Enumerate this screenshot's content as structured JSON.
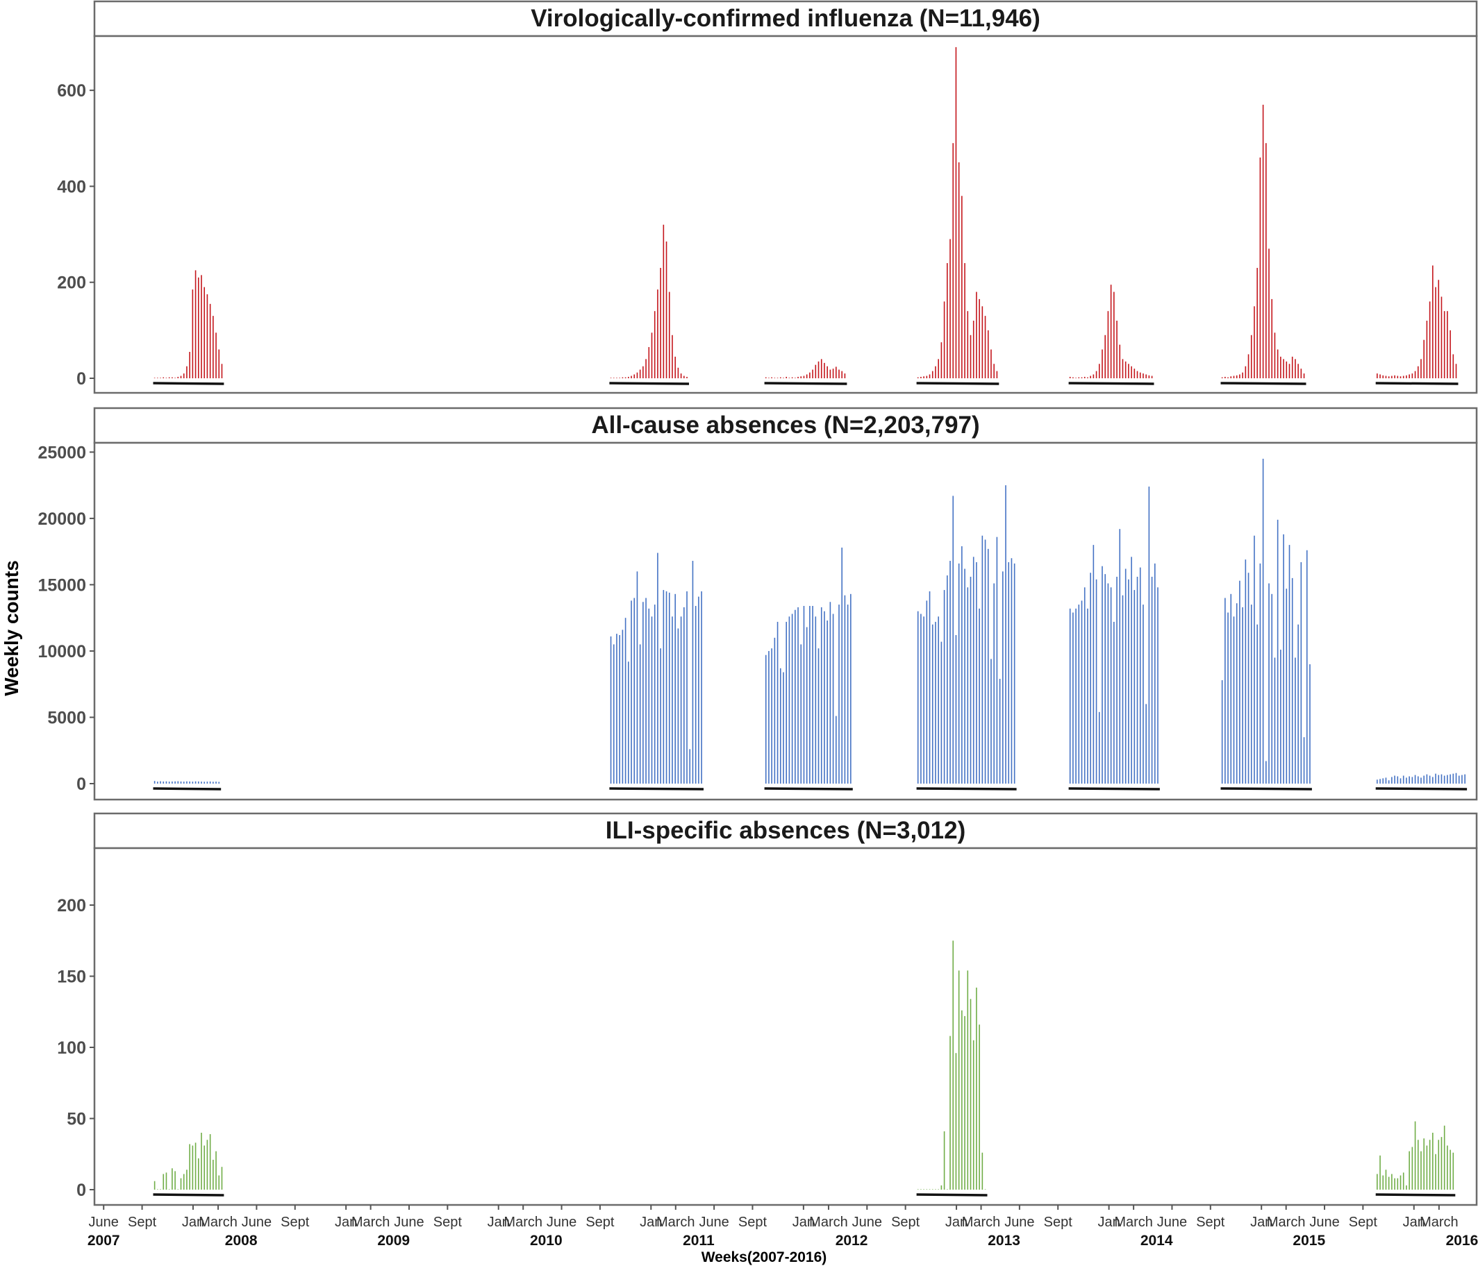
{
  "chart_data": [
    {
      "type": "bar",
      "title": "Virologically-confirmed influenza (N=11,946)",
      "xlabel": "Weeks(2007-2016)",
      "ylabel": "Weekly counts",
      "ylim": [
        0,
        700
      ],
      "yticks": [
        0,
        200,
        400,
        600
      ],
      "color": "#c4161c",
      "seasons": [
        {
          "start": "2007-10-01",
          "values": [
            1,
            1,
            1,
            2,
            1,
            2,
            2,
            1,
            3,
            5,
            10,
            25,
            55,
            185,
            225,
            210,
            215,
            190,
            175,
            155,
            130,
            95,
            60,
            30
          ]
        },
        {
          "start": "2010-09-27",
          "values": [
            1,
            1,
            1,
            1,
            2,
            2,
            3,
            5,
            8,
            12,
            18,
            25,
            40,
            65,
            95,
            140,
            185,
            230,
            320,
            285,
            180,
            90,
            45,
            22,
            10,
            5,
            3
          ]
        },
        {
          "start": "2011-10-03",
          "values": [
            2,
            1,
            2,
            1,
            1,
            2,
            1,
            3,
            1,
            2,
            1,
            3,
            4,
            5,
            8,
            12,
            18,
            28,
            35,
            40,
            32,
            25,
            18,
            20,
            24,
            18,
            15,
            10
          ]
        },
        {
          "start": "2012-10-01",
          "values": [
            2,
            3,
            4,
            5,
            8,
            15,
            25,
            40,
            75,
            160,
            240,
            290,
            490,
            690,
            450,
            380,
            240,
            140,
            90,
            120,
            180,
            165,
            150,
            130,
            100,
            60,
            30,
            15
          ]
        },
        {
          "start": "2013-09-30",
          "values": [
            3,
            2,
            1,
            2,
            2,
            3,
            2,
            5,
            8,
            15,
            30,
            60,
            90,
            140,
            195,
            180,
            120,
            70,
            40,
            35,
            30,
            25,
            20,
            15,
            12,
            10,
            8,
            6,
            5
          ]
        },
        {
          "start": "2014-09-29",
          "values": [
            2,
            3,
            2,
            4,
            5,
            6,
            8,
            12,
            25,
            50,
            90,
            150,
            230,
            460,
            570,
            490,
            270,
            165,
            95,
            60,
            45,
            40,
            35,
            30,
            45,
            40,
            30,
            20,
            10
          ]
        },
        {
          "start": "2015-10-05",
          "values": [
            10,
            8,
            6,
            5,
            4,
            5,
            6,
            5,
            4,
            5,
            6,
            8,
            10,
            15,
            25,
            40,
            80,
            120,
            160,
            235,
            190,
            205,
            170,
            140,
            140,
            100,
            50,
            30
          ]
        }
      ]
    },
    {
      "type": "bar",
      "title": "All-cause absences (N=2,203,797)",
      "ylim": [
        0,
        25700
      ],
      "yticks": [
        0,
        5000,
        10000,
        15000,
        20000,
        25000
      ],
      "color": "#4472c4",
      "seasons": [
        {
          "start": "2007-10-01",
          "values": [
            200,
            150,
            180,
            160,
            170,
            150,
            160,
            170,
            180,
            160,
            150,
            170,
            160,
            150,
            170,
            160,
            150,
            140,
            150,
            160,
            140,
            150,
            130
          ]
        },
        {
          "start": "2010-09-27",
          "values": [
            11100,
            10500,
            11300,
            11200,
            11600,
            12500,
            9200,
            13800,
            14000,
            16000,
            10500,
            13700,
            14000,
            13200,
            12600,
            13500,
            17400,
            10200,
            14600,
            14500,
            14400,
            12600,
            14300,
            11700,
            12600,
            13300,
            14500,
            2600,
            16800,
            13400,
            14100,
            14500
          ]
        },
        {
          "start": "2011-10-03",
          "values": [
            9700,
            10000,
            10200,
            11000,
            12200,
            8700,
            8400,
            12200,
            12600,
            12800,
            13100,
            13300,
            10500,
            13400,
            11800,
            13400,
            13400,
            12600,
            10200,
            13300,
            13000,
            12300,
            13700,
            12800,
            5100,
            13500,
            17800,
            14200,
            13500,
            14300
          ]
        },
        {
          "start": "2012-10-01",
          "values": [
            13000,
            12800,
            12600,
            13800,
            14500,
            12000,
            12200,
            12600,
            10700,
            14600,
            15700,
            16800,
            21700,
            11200,
            16600,
            17900,
            16200,
            14800,
            15600,
            17100,
            16700,
            13200,
            18700,
            18400,
            17700,
            9400,
            15100,
            18600,
            7900,
            16000,
            22500,
            16700,
            17000,
            16600
          ]
        },
        {
          "start": "2013-09-30",
          "values": [
            13200,
            12900,
            13200,
            13500,
            13800,
            14800,
            13200,
            15900,
            18000,
            15400,
            5400,
            16400,
            15800,
            15100,
            14800,
            12200,
            15600,
            19200,
            14200,
            16200,
            15400,
            17100,
            14600,
            15600,
            16300,
            13500,
            6000,
            22400,
            15600,
            16600,
            14800
          ]
        },
        {
          "start": "2014-09-29",
          "values": [
            7800,
            14000,
            12900,
            14300,
            12600,
            13600,
            15300,
            13300,
            16900,
            15900,
            13500,
            18700,
            12000,
            16600,
            24500,
            1700,
            15100,
            14300,
            9500,
            19900,
            10100,
            18800,
            14700,
            18000,
            15500,
            9500,
            12000,
            16700,
            3500,
            17600,
            9000
          ]
        },
        {
          "start": "2015-10-05",
          "values": [
            300,
            350,
            400,
            450,
            250,
            500,
            600,
            550,
            400,
            600,
            450,
            550,
            500,
            650,
            550,
            450,
            600,
            700,
            600,
            500,
            750,
            650,
            700,
            600,
            650,
            700,
            750,
            800,
            600,
            650,
            700
          ]
        }
      ]
    },
    {
      "type": "bar",
      "title": "ILI-specific absences (N=3,012)",
      "ylim": [
        0,
        240
      ],
      "yticks": [
        0,
        50,
        100,
        150,
        200
      ],
      "color": "#70ad47",
      "seasons": [
        {
          "start": "2007-10-01",
          "values": [
            6,
            0,
            0,
            11,
            12,
            0,
            15,
            13,
            0,
            8,
            11,
            14,
            32,
            31,
            33,
            22,
            40,
            31,
            35,
            39,
            21,
            27,
            10,
            16
          ]
        },
        {
          "start": "2012-10-01",
          "values": [
            0,
            0,
            0,
            0,
            0,
            0,
            0,
            0,
            3,
            41,
            0,
            108,
            175,
            96,
            154,
            126,
            122,
            154,
            134,
            105,
            142,
            116,
            26,
            0
          ]
        },
        {
          "start": "2015-10-05",
          "values": [
            11,
            24,
            10,
            14,
            9,
            11,
            8,
            8,
            10,
            12,
            3,
            27,
            30,
            48,
            35,
            27,
            36,
            31,
            35,
            40,
            25,
            35,
            37,
            45,
            31,
            28,
            26
          ]
        }
      ]
    }
  ],
  "x_axis": {
    "month_labels": [
      "June",
      "Sept",
      "Jan",
      "March",
      "June",
      "Sept",
      "Jan",
      "March",
      "June",
      "Sept",
      "Jan",
      "March",
      "June",
      "Sept",
      "Jan",
      "March",
      "June",
      "Sept",
      "Jan",
      "March",
      "June",
      "Sept",
      "Jan",
      "March",
      "June",
      "Sept",
      "Jan",
      "March",
      "June",
      "Sept",
      "Jan",
      "March",
      "June",
      "Sept",
      "Jan",
      "March"
    ],
    "year_labels": [
      "2007",
      "2008",
      "2009",
      "2010",
      "2011",
      "2012",
      "2013",
      "2014",
      "2015",
      "2016"
    ],
    "range": [
      "2007-05-10",
      "2016-05-30"
    ]
  }
}
